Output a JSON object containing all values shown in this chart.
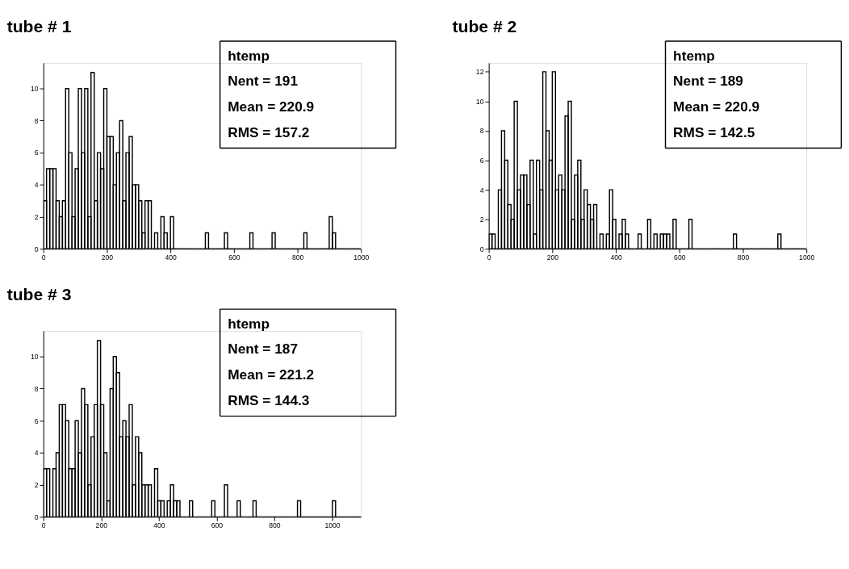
{
  "chart_data": [
    {
      "type": "histogram",
      "title": "tube # 1",
      "annotations": [
        "htemp",
        "Nent = 191",
        "Mean  =  220.9",
        "RMS   =  157.2"
      ],
      "bins": [
        0,
        10,
        20,
        30,
        40,
        50,
        60,
        70,
        80,
        90,
        100,
        110,
        120,
        130,
        140,
        150,
        160,
        170,
        180,
        190,
        200,
        210,
        220,
        230,
        240,
        250,
        260,
        270,
        280,
        290,
        300,
        310,
        320,
        330,
        340,
        350,
        360,
        370,
        380,
        390,
        400,
        410,
        420,
        430,
        440,
        450,
        460,
        470,
        480,
        490,
        500,
        510,
        520,
        530,
        540,
        550,
        560,
        570,
        580,
        590,
        600,
        610,
        620,
        630,
        640,
        650,
        660,
        670,
        680,
        690,
        700,
        710,
        720,
        730,
        740,
        750,
        760,
        770,
        780,
        790,
        800,
        810,
        820,
        830,
        840,
        850,
        860,
        870,
        880,
        890,
        900,
        910,
        920,
        930,
        940,
        950,
        960,
        970,
        980,
        990,
        1000
      ],
      "values": [
        3,
        5,
        5,
        5,
        3,
        2,
        3,
        10,
        6,
        2,
        5,
        10,
        6,
        10,
        2,
        11,
        3,
        6,
        5,
        10,
        7,
        7,
        4,
        6,
        8,
        3,
        6,
        7,
        4,
        4,
        3,
        1,
        3,
        3,
        0,
        1,
        0,
        2,
        1,
        0,
        2,
        0,
        0,
        0,
        0,
        0,
        0,
        0,
        0,
        0,
        0,
        1,
        0,
        0,
        0,
        0,
        0,
        1,
        0,
        0,
        0,
        0,
        0,
        0,
        0,
        1,
        0,
        0,
        0,
        0,
        0,
        0,
        1,
        0,
        0,
        0,
        0,
        0,
        0,
        0,
        0,
        0,
        1,
        0,
        0,
        0,
        0,
        0,
        0,
        0,
        2,
        1,
        0,
        0,
        0,
        0,
        0,
        0,
        0,
        0
      ],
      "color": "#000000",
      "xlim": [
        0,
        1000
      ],
      "xticks": [
        0,
        200,
        400,
        600,
        800,
        1000
      ],
      "ylim": [
        0,
        11.6
      ],
      "yticks": [
        0,
        2,
        4,
        6,
        8,
        10
      ],
      "grid": false
    },
    {
      "type": "histogram",
      "title": "tube # 2",
      "annotations": [
        "htemp",
        "Nent = 189",
        "Mean  =  220.9",
        "RMS   =  142.5"
      ],
      "bins": [
        0,
        10,
        20,
        30,
        40,
        50,
        60,
        70,
        80,
        90,
        100,
        110,
        120,
        130,
        140,
        150,
        160,
        170,
        180,
        190,
        200,
        210,
        220,
        230,
        240,
        250,
        260,
        270,
        280,
        290,
        300,
        310,
        320,
        330,
        340,
        350,
        360,
        370,
        380,
        390,
        400,
        410,
        420,
        430,
        440,
        450,
        460,
        470,
        480,
        490,
        500,
        510,
        520,
        530,
        540,
        550,
        560,
        570,
        580,
        590,
        600,
        610,
        620,
        630,
        640,
        650,
        660,
        670,
        680,
        690,
        700,
        710,
        720,
        730,
        740,
        750,
        760,
        770,
        780,
        790,
        800,
        810,
        820,
        830,
        840,
        850,
        860,
        870,
        880,
        890,
        900,
        910,
        920,
        930,
        940,
        950,
        960,
        970,
        980,
        990,
        1000
      ],
      "values": [
        1,
        1,
        0,
        4,
        8,
        6,
        3,
        2,
        10,
        4,
        5,
        5,
        3,
        6,
        1,
        6,
        4,
        12,
        8,
        6,
        12,
        4,
        5,
        4,
        9,
        10,
        2,
        5,
        6,
        2,
        4,
        3,
        2,
        3,
        0,
        1,
        0,
        1,
        4,
        2,
        0,
        1,
        2,
        1,
        0,
        0,
        0,
        1,
        0,
        0,
        2,
        0,
        1,
        0,
        1,
        1,
        1,
        0,
        2,
        0,
        0,
        0,
        0,
        2,
        0,
        0,
        0,
        0,
        0,
        0,
        0,
        0,
        0,
        0,
        0,
        0,
        0,
        1,
        0,
        0,
        0,
        0,
        0,
        0,
        0,
        0,
        0,
        0,
        0,
        0,
        0,
        1,
        0,
        0,
        0,
        0,
        0,
        0,
        0,
        0
      ],
      "color": "#000000",
      "xlim": [
        0,
        1000
      ],
      "xticks": [
        0,
        200,
        400,
        600,
        800,
        1000
      ],
      "ylim": [
        0,
        12.6
      ],
      "yticks": [
        0,
        2,
        4,
        6,
        8,
        10,
        12
      ],
      "grid": false
    },
    {
      "type": "histogram",
      "title": "tube # 3",
      "annotations": [
        "htemp",
        "Nent = 187",
        "Mean  =  221.2",
        "RMS   =  144.3"
      ],
      "bins": [
        0,
        11,
        22,
        33,
        44,
        55,
        66,
        77,
        88,
        99,
        110,
        121,
        132,
        143,
        154,
        165,
        176,
        187,
        198,
        209,
        220,
        231,
        242,
        253,
        264,
        275,
        286,
        297,
        308,
        319,
        330,
        341,
        352,
        363,
        374,
        385,
        396,
        407,
        418,
        429,
        440,
        451,
        462,
        473,
        484,
        495,
        506,
        517,
        528,
        539,
        550,
        561,
        572,
        583,
        594,
        605,
        616,
        627,
        638,
        649,
        660,
        671,
        682,
        693,
        704,
        715,
        726,
        737,
        748,
        759,
        770,
        781,
        792,
        803,
        814,
        825,
        836,
        847,
        858,
        869,
        880,
        891,
        902,
        913,
        924,
        935,
        946,
        957,
        968,
        979,
        990,
        1001,
        1012,
        1023,
        1034,
        1045,
        1056,
        1067,
        1078,
        1089,
        1100
      ],
      "values": [
        3,
        3,
        0,
        3,
        4,
        7,
        7,
        6,
        3,
        3,
        6,
        4,
        8,
        7,
        2,
        5,
        7,
        11,
        7,
        4,
        1,
        8,
        10,
        9,
        5,
        6,
        5,
        7,
        2,
        5,
        4,
        2,
        2,
        2,
        0,
        3,
        1,
        1,
        0,
        1,
        2,
        1,
        1,
        0,
        0,
        0,
        1,
        0,
        0,
        0,
        0,
        0,
        0,
        1,
        0,
        0,
        0,
        2,
        0,
        0,
        0,
        1,
        0,
        0,
        0,
        0,
        1,
        0,
        0,
        0,
        0,
        0,
        0,
        0,
        0,
        0,
        0,
        0,
        0,
        0,
        1,
        0,
        0,
        0,
        0,
        0,
        0,
        0,
        0,
        0,
        0,
        1,
        0,
        0,
        0,
        0,
        0,
        0,
        0,
        0
      ],
      "color": "#000000",
      "xlim": [
        0,
        1100
      ],
      "xticks": [
        0,
        200,
        400,
        600,
        800,
        1000
      ],
      "ylim": [
        0,
        11.6
      ],
      "yticks": [
        0,
        2,
        4,
        6,
        8,
        10
      ],
      "grid": false
    }
  ]
}
